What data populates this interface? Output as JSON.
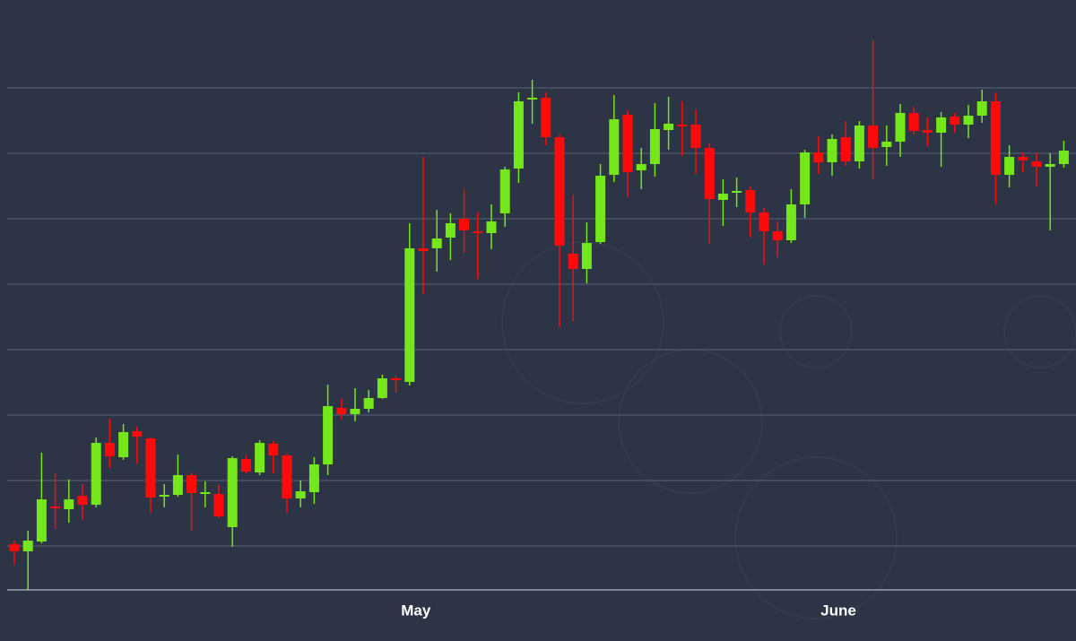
{
  "chart_data": {
    "type": "candlestick",
    "categories": [
      null,
      null,
      null,
      null,
      null,
      null,
      null,
      null,
      null,
      null,
      null,
      null,
      null,
      null,
      null,
      null,
      null,
      null,
      null,
      null,
      null,
      null,
      null,
      null,
      null,
      null,
      null,
      null,
      null,
      "May",
      null,
      null,
      null,
      null,
      null,
      null,
      null,
      null,
      null,
      null,
      null,
      null,
      null,
      null,
      null,
      null,
      null,
      null,
      null,
      null,
      null,
      null,
      null,
      null,
      null,
      null,
      null,
      null,
      null,
      null,
      "June",
      null,
      null,
      null,
      null,
      null,
      null,
      null,
      null,
      null,
      null,
      null,
      null,
      null,
      null,
      null,
      null,
      null
    ],
    "open": [
      51,
      43,
      54,
      93,
      90,
      105,
      95,
      164,
      148,
      177,
      169,
      104,
      106,
      128,
      107,
      107,
      70,
      146,
      131,
      163,
      150,
      102,
      109,
      140,
      203,
      196,
      202,
      214,
      236,
      232,
      381,
      381,
      393,
      414,
      400,
      398,
      420,
      470,
      547,
      549,
      505,
      375,
      358,
      388,
      463,
      530,
      468,
      475,
      513,
      519,
      519,
      493,
      435,
      443,
      446,
      421,
      400,
      390,
      430,
      488,
      477,
      505,
      478,
      518,
      494,
      500,
      532,
      513,
      510,
      528,
      519,
      529,
      545,
      463,
      483,
      478,
      472,
      475
    ],
    "high": [
      55,
      66,
      153,
      130,
      123,
      118,
      170,
      191,
      185,
      182,
      170,
      118,
      151,
      131,
      121,
      117,
      149,
      150,
      167,
      166,
      152,
      122,
      148,
      229,
      213,
      225,
      223,
      240,
      239,
      409,
      483,
      424,
      420,
      446,
      421,
      430,
      472,
      555,
      569,
      555,
      508,
      441,
      410,
      475,
      552,
      535,
      493,
      543,
      550,
      545,
      536,
      498,
      458,
      460,
      450,
      426,
      411,
      447,
      491,
      506,
      508,
      523,
      523,
      613,
      518,
      542,
      539,
      527,
      533,
      532,
      541,
      558,
      555,
      496,
      488,
      488,
      487,
      501
    ],
    "low": [
      28,
      0,
      52,
      68,
      75,
      78,
      92,
      136,
      145,
      141,
      86,
      92,
      104,
      66,
      92,
      80,
      48,
      130,
      128,
      130,
      86,
      92,
      96,
      128,
      190,
      188,
      198,
      213,
      220,
      228,
      330,
      355,
      368,
      376,
      347,
      380,
      405,
      454,
      520,
      496,
      293,
      300,
      342,
      386,
      455,
      438,
      447,
      461,
      491,
      484,
      464,
      386,
      406,
      427,
      393,
      363,
      371,
      387,
      415,
      464,
      462,
      473,
      470,
      458,
      473,
      483,
      508,
      495,
      472,
      510,
      504,
      521,
      430,
      449,
      466,
      450,
      401,
      471
    ],
    "close": [
      43,
      55,
      101,
      91,
      101,
      95,
      164,
      149,
      176,
      171,
      103,
      106,
      128,
      108,
      109,
      82,
      147,
      132,
      164,
      150,
      102,
      110,
      140,
      205,
      196,
      202,
      214,
      236,
      234,
      381,
      378,
      392,
      409,
      401,
      398,
      411,
      469,
      545,
      549,
      505,
      384,
      358,
      387,
      462,
      525,
      466,
      475,
      514,
      520,
      517,
      493,
      436,
      442,
      445,
      421,
      400,
      390,
      430,
      488,
      477,
      503,
      478,
      518,
      493,
      500,
      532,
      512,
      510,
      527,
      519,
      529,
      545,
      463,
      483,
      479,
      472,
      475,
      490
    ],
    "up_color": "#74e61a",
    "down_color": "#ff0a0a",
    "ylim": [
      0,
      658
    ],
    "yticks": [
      49,
      122,
      195,
      268,
      341,
      414,
      487,
      560
    ],
    "grid": true
  }
}
